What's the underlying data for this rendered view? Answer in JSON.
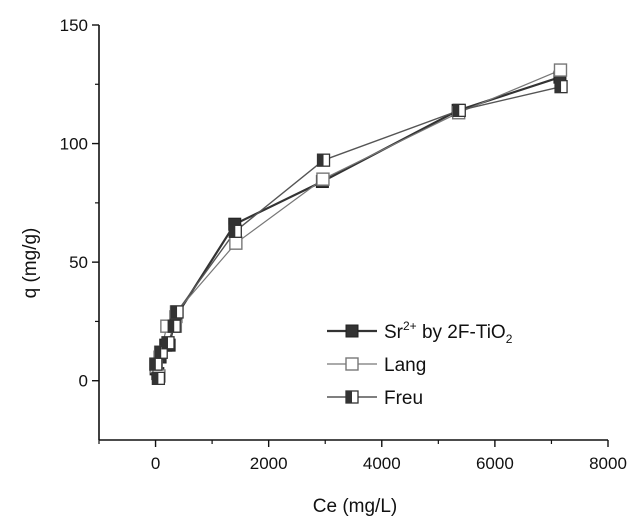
{
  "chart_data": {
    "type": "scatter",
    "title": "",
    "xlabel": "Ce (mg/L)",
    "ylabel": "q  (mg/g)",
    "xlim": [
      -1000,
      8000
    ],
    "ylim": [
      -25,
      150
    ],
    "xticks": [
      0,
      2000,
      4000,
      6000,
      8000
    ],
    "yticks": [
      0,
      50,
      100,
      150
    ],
    "grid": false,
    "legend_placement": "bottom-right",
    "legend": [
      {
        "main": "Sr",
        "sup": "2+",
        "mid": " by 2F-TiO",
        "sub": "2"
      },
      {
        "main": "Lang"
      },
      {
        "main": "Freu"
      }
    ],
    "series": [
      {
        "name": "Sr2+ by 2F-TiO2",
        "marker": "filled-square",
        "color": "#333333",
        "points": [
          {
            "x": 10,
            "y": 5
          },
          {
            "x": 40,
            "y": 3
          },
          {
            "x": 80,
            "y": 10
          },
          {
            "x": 180,
            "y": 15
          },
          {
            "x": 240,
            "y": 15
          },
          {
            "x": 360,
            "y": 27
          },
          {
            "x": 1400,
            "y": 66
          },
          {
            "x": 2950,
            "y": 84
          },
          {
            "x": 5350,
            "y": 114
          },
          {
            "x": 7150,
            "y": 128
          }
        ]
      },
      {
        "name": "Lang",
        "marker": "open-square",
        "color": "#777777",
        "points": [
          {
            "x": 10,
            "y": 6
          },
          {
            "x": 60,
            "y": 2
          },
          {
            "x": 90,
            "y": 12
          },
          {
            "x": 200,
            "y": 23
          },
          {
            "x": 350,
            "y": 23
          },
          {
            "x": 370,
            "y": 29
          },
          {
            "x": 1420,
            "y": 58
          },
          {
            "x": 2960,
            "y": 85
          },
          {
            "x": 5360,
            "y": 113
          },
          {
            "x": 7160,
            "y": 131
          }
        ]
      },
      {
        "name": "Freu",
        "marker": "half-filled-square",
        "color": "#555555",
        "points": [
          {
            "x": 5,
            "y": 7
          },
          {
            "x": 50,
            "y": 1
          },
          {
            "x": 100,
            "y": 12
          },
          {
            "x": 220,
            "y": 16
          },
          {
            "x": 330,
            "y": 23
          },
          {
            "x": 380,
            "y": 29
          },
          {
            "x": 1410,
            "y": 63
          },
          {
            "x": 2970,
            "y": 93
          },
          {
            "x": 5370,
            "y": 114
          },
          {
            "x": 7170,
            "y": 124
          }
        ]
      }
    ]
  }
}
